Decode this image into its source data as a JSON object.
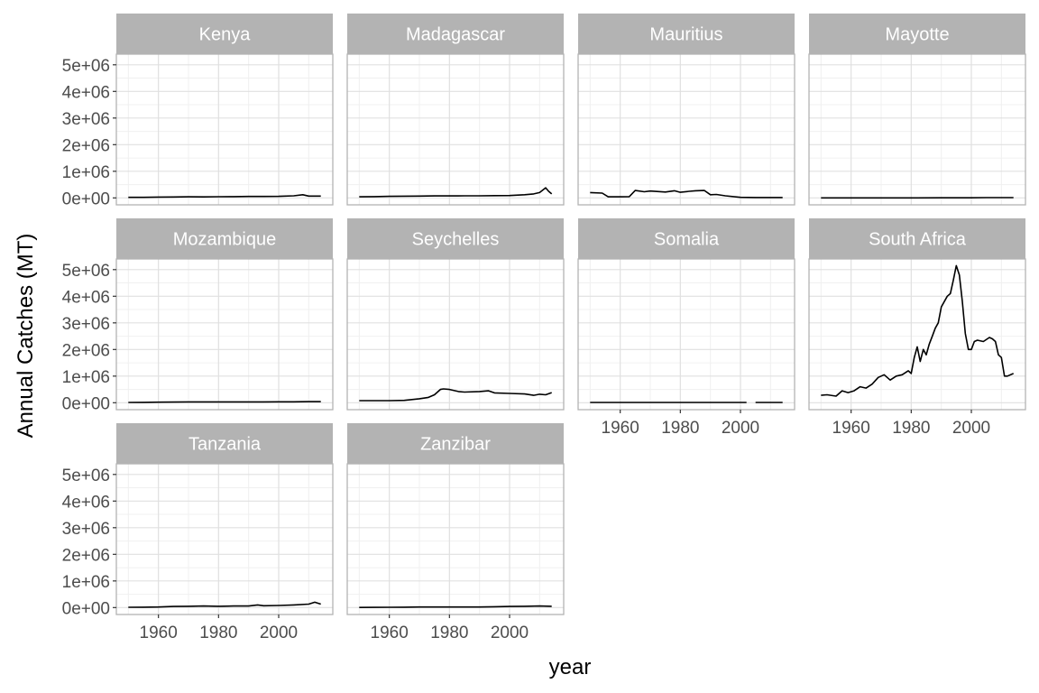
{
  "chart_data": {
    "type": "line",
    "xlabel": "year",
    "ylabel": "Annual Catches (MT)",
    "xlim": [
      1946,
      2018
    ],
    "ylim": [
      -260000,
      5400000
    ],
    "x_ticks": [
      1960,
      1980,
      2000
    ],
    "x_tick_labels": [
      "1960",
      "1980",
      "2000"
    ],
    "y_ticks": [
      0,
      1000000,
      2000000,
      3000000,
      4000000,
      5000000
    ],
    "y_tick_labels": [
      "0e+00",
      "1e+06",
      "2e+06",
      "3e+06",
      "4e+06",
      "5e+06"
    ],
    "grid": true,
    "facets": [
      {
        "panel": "Kenya",
        "x": [
          1950,
          1955,
          1960,
          1965,
          1970,
          1975,
          1980,
          1985,
          1990,
          1995,
          2000,
          2005,
          2008,
          2010,
          2014
        ],
        "y": [
          20000,
          22000,
          30000,
          35000,
          40000,
          38000,
          45000,
          50000,
          55000,
          55000,
          60000,
          80000,
          120000,
          70000,
          70000
        ]
      },
      {
        "panel": "Madagascar",
        "x": [
          1950,
          1955,
          1960,
          1965,
          1970,
          1975,
          1980,
          1985,
          1990,
          1995,
          2000,
          2005,
          2008,
          2010,
          2012,
          2013,
          2014
        ],
        "y": [
          40000,
          50000,
          60000,
          65000,
          70000,
          75000,
          75000,
          80000,
          80000,
          85000,
          90000,
          120000,
          150000,
          200000,
          380000,
          250000,
          150000
        ]
      },
      {
        "panel": "Mauritius",
        "x": [
          1950,
          1954,
          1956,
          1960,
          1963,
          1965,
          1968,
          1970,
          1975,
          1978,
          1980,
          1983,
          1985,
          1988,
          1990,
          1992,
          1995,
          2000,
          2005,
          2010,
          2014
        ],
        "y": [
          200000,
          180000,
          40000,
          40000,
          50000,
          280000,
          230000,
          260000,
          220000,
          270000,
          210000,
          250000,
          270000,
          280000,
          120000,
          130000,
          80000,
          20000,
          15000,
          15000,
          15000
        ]
      },
      {
        "panel": "Mayotte",
        "x": [
          1950,
          1960,
          1970,
          1980,
          1990,
          2000,
          2005,
          2010,
          2014
        ],
        "y": [
          1000,
          1000,
          1000,
          2000,
          3000,
          5000,
          10000,
          12000,
          12000
        ]
      },
      {
        "panel": "Mozambique",
        "x": [
          1950,
          1955,
          1960,
          1965,
          1970,
          1975,
          1980,
          1985,
          1990,
          1995,
          2000,
          2005,
          2010,
          2014
        ],
        "y": [
          10000,
          15000,
          20000,
          25000,
          30000,
          30000,
          30000,
          30000,
          30000,
          30000,
          35000,
          35000,
          40000,
          40000
        ]
      },
      {
        "panel": "Seychelles",
        "x": [
          1950,
          1955,
          1960,
          1965,
          1970,
          1973,
          1975,
          1977,
          1978,
          1980,
          1983,
          1985,
          1990,
          1993,
          1995,
          2000,
          2005,
          2008,
          2010,
          2012,
          2014
        ],
        "y": [
          80000,
          80000,
          80000,
          90000,
          150000,
          200000,
          300000,
          500000,
          520000,
          500000,
          420000,
          400000,
          420000,
          450000,
          370000,
          350000,
          330000,
          280000,
          320000,
          300000,
          380000
        ]
      },
      {
        "panel": "Somalia",
        "x": [
          1950,
          1960,
          1970,
          1980,
          1990,
          2000,
          2002,
          null,
          2005,
          2010,
          2014
        ],
        "y": [
          10000,
          10000,
          10000,
          10000,
          10000,
          10000,
          10000,
          null,
          10000,
          10000,
          10000
        ]
      },
      {
        "panel": "South Africa",
        "x": [
          1950,
          1952,
          1955,
          1957,
          1959,
          1961,
          1963,
          1965,
          1967,
          1969,
          1971,
          1973,
          1975,
          1977,
          1979,
          1980,
          1981,
          1982,
          1983,
          1984,
          1985,
          1986,
          1987,
          1988,
          1989,
          1990,
          1991,
          1992,
          1993,
          1994,
          1995,
          1996,
          1997,
          1998,
          1999,
          2000,
          2001,
          2002,
          2004,
          2006,
          2007,
          2008,
          2009,
          2010,
          2011,
          2012,
          2014
        ],
        "y": [
          280000,
          300000,
          250000,
          450000,
          380000,
          450000,
          600000,
          550000,
          700000,
          950000,
          1050000,
          850000,
          1000000,
          1050000,
          1200000,
          1100000,
          1700000,
          2100000,
          1550000,
          2000000,
          1800000,
          2200000,
          2500000,
          2800000,
          3000000,
          3600000,
          3800000,
          4000000,
          4100000,
          4600000,
          5150000,
          4800000,
          3800000,
          2600000,
          2000000,
          2000000,
          2300000,
          2350000,
          2300000,
          2450000,
          2400000,
          2300000,
          1800000,
          1700000,
          1000000,
          1000000,
          1100000
        ]
      },
      {
        "panel": "Tanzania",
        "x": [
          1950,
          1955,
          1960,
          1965,
          1970,
          1975,
          1980,
          1985,
          1990,
          1993,
          1995,
          2000,
          2005,
          2010,
          2012,
          2014
        ],
        "y": [
          10000,
          15000,
          20000,
          40000,
          50000,
          60000,
          50000,
          60000,
          60000,
          100000,
          70000,
          80000,
          100000,
          130000,
          200000,
          130000
        ]
      },
      {
        "panel": "Zanzibar",
        "x": [
          1950,
          1955,
          1960,
          1965,
          1970,
          1975,
          1980,
          1985,
          1990,
          1995,
          2000,
          2005,
          2010,
          2014
        ],
        "y": [
          5000,
          8000,
          10000,
          15000,
          20000,
          20000,
          20000,
          20000,
          20000,
          30000,
          40000,
          50000,
          60000,
          50000
        ]
      }
    ]
  }
}
